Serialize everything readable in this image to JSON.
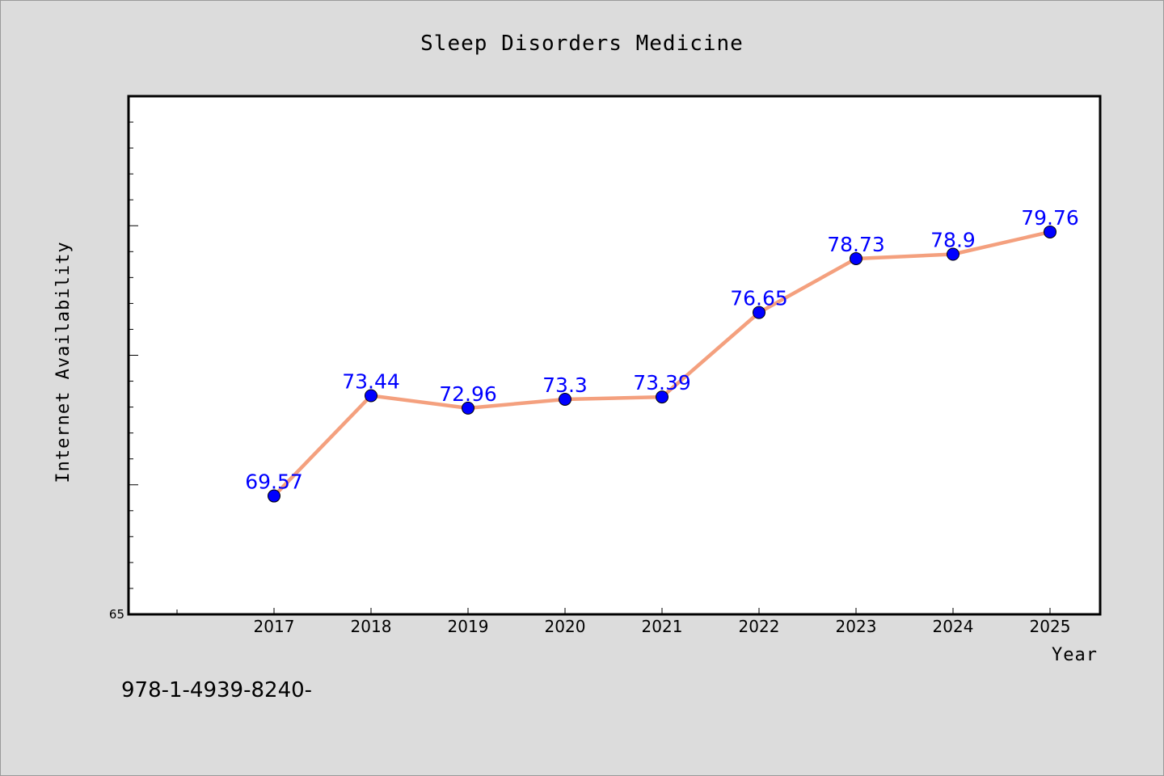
{
  "chart_data": {
    "type": "line",
    "title": "Sleep Disorders Medicine",
    "xlabel": "Year",
    "ylabel": "Internet Availability",
    "categories": [
      "2017",
      "2018",
      "2019",
      "2020",
      "2021",
      "2022",
      "2023",
      "2024",
      "2025"
    ],
    "series": [
      {
        "values": [
          69.57,
          73.44,
          72.96,
          73.3,
          73.39,
          76.65,
          78.73,
          78.9,
          79.76
        ],
        "labels": [
          "69.57",
          "73.44",
          "72.96",
          "73.3",
          "73.39",
          "76.65",
          "78.73",
          "78.9",
          "79.76"
        ],
        "line_color": "#f4a07e",
        "marker_color": "#0000ff"
      }
    ],
    "ylim": [
      65,
      85
    ],
    "y_tick_labels": [
      "65"
    ],
    "grid": false,
    "legend": "none"
  },
  "footer": {
    "code": "978-1-4939-8240-"
  },
  "colors": {
    "background": "#dcdcdc",
    "plot_background": "#ffffff",
    "label_color": "#0000ff"
  }
}
